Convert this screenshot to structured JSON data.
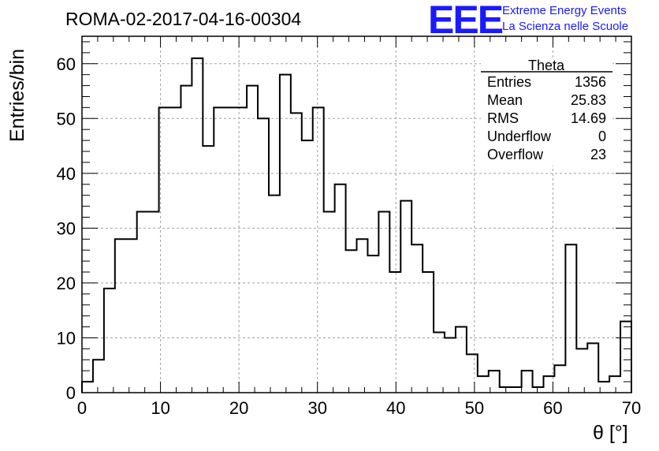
{
  "header": {
    "title": "ROMA-02-2017-04-16-00304",
    "logo_mark": "EEE",
    "logo_line1": "Extreme Energy Events",
    "logo_line2": "La Scienza nelle Scuole"
  },
  "stats": {
    "name": "Theta",
    "rows": [
      {
        "label": "Entries",
        "value": "1356"
      },
      {
        "label": "Mean",
        "value": "25.83"
      },
      {
        "label": "RMS",
        "value": "14.69"
      },
      {
        "label": "Underflow",
        "value": "0"
      },
      {
        "label": "Overflow",
        "value": "23"
      }
    ]
  },
  "colors": {
    "logo": "#1a1aff",
    "histogram": "#000000",
    "grid": "#a0a0a0"
  },
  "chart_data": {
    "type": "histogram",
    "title": "ROMA-02-2017-04-16-00304",
    "xlabel": "θ [°]",
    "ylabel": "Entries/bin",
    "xlim": [
      0,
      70
    ],
    "ylim": [
      0,
      65
    ],
    "xticks": [
      0,
      10,
      20,
      30,
      40,
      50,
      60,
      70
    ],
    "yticks": [
      0,
      10,
      20,
      30,
      40,
      50,
      60
    ],
    "bin_width": 1.4,
    "bin_edges_start": 0,
    "values": [
      2,
      6,
      19,
      28,
      28,
      33,
      33,
      52,
      52,
      56,
      61,
      45,
      52,
      52,
      52,
      56,
      50,
      36,
      58,
      51,
      46,
      52,
      33,
      38,
      26,
      28,
      25,
      33,
      22,
      35,
      27,
      22,
      11,
      10,
      12,
      7,
      3,
      4,
      1,
      1,
      4,
      1,
      3,
      5,
      27,
      8,
      9,
      2,
      3,
      13
    ],
    "grid": true,
    "legend": "top-right"
  }
}
